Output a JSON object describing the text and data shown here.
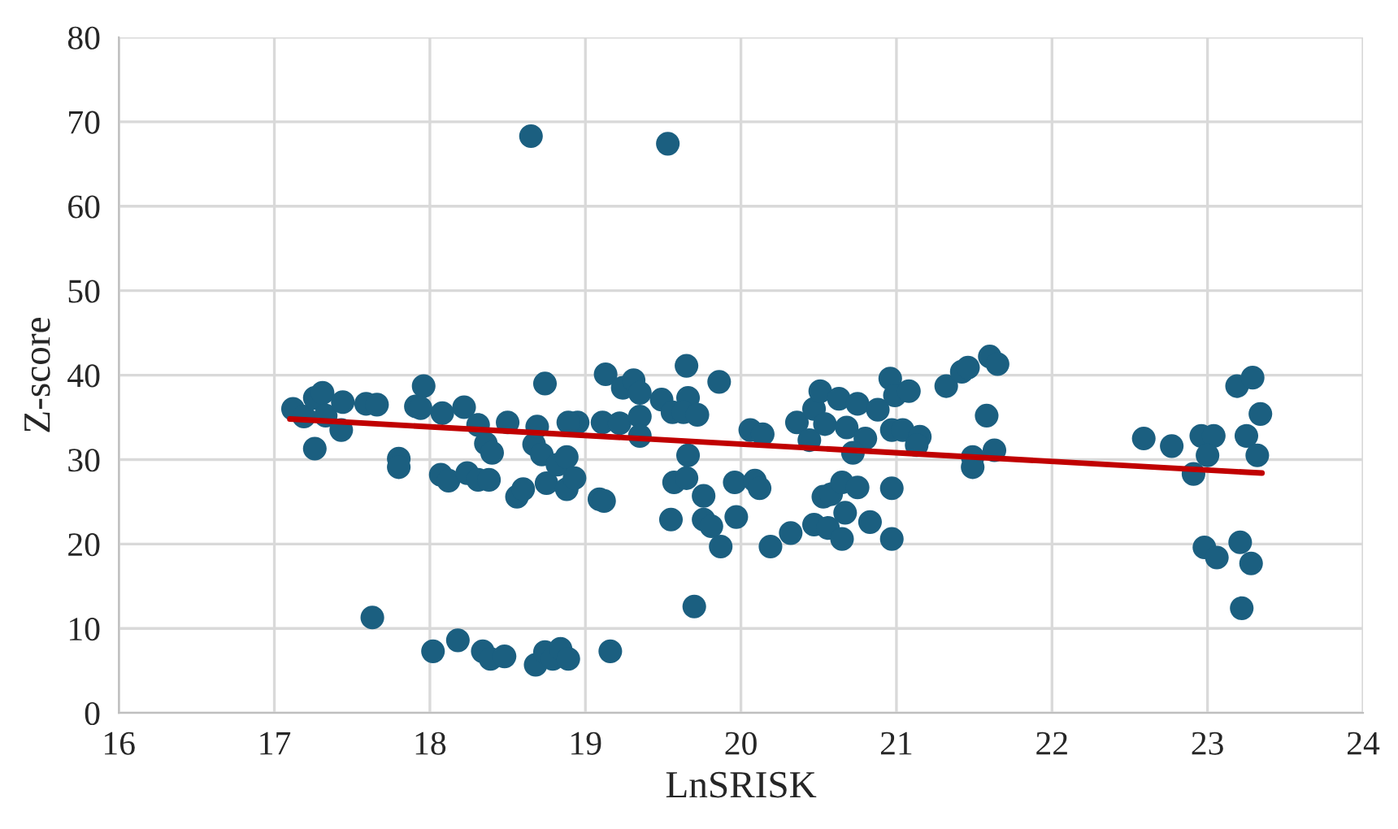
{
  "chart_data": {
    "type": "scatter",
    "xlabel": "LnSRISK",
    "ylabel": "Z-score",
    "xlim": [
      16,
      24
    ],
    "ylim": [
      0,
      80
    ],
    "xticks": [
      16,
      17,
      18,
      19,
      20,
      21,
      22,
      23,
      24
    ],
    "yticks": [
      0,
      10,
      20,
      30,
      40,
      50,
      60,
      70,
      80
    ],
    "grid": true,
    "marker": "circle",
    "series": [
      {
        "color": "#1b5f80",
        "x": [
          17.12,
          17.19,
          17.26,
          17.31,
          17.33,
          17.26,
          17.44,
          17.43,
          17.59,
          17.66,
          17.63,
          17.8,
          17.8,
          17.91,
          17.96,
          17.94,
          18.08,
          18.22,
          18.07,
          18.12,
          18.24,
          18.31,
          18.38,
          18.31,
          18.36,
          18.4,
          18.5,
          18.56,
          18.6,
          18.67,
          18.72,
          18.69,
          18.74,
          18.75,
          18.82,
          18.88,
          18.88,
          18.93,
          18.95,
          18.89,
          19.09,
          19.12,
          19.13,
          19.24,
          19.11,
          19.22,
          18.02,
          18.18,
          18.34,
          18.39,
          18.48,
          18.68,
          18.74,
          18.79,
          18.84,
          18.89,
          19.16,
          18.65,
          19.53,
          19.31,
          19.35,
          19.35,
          19.35,
          19.65,
          19.86,
          19.49,
          19.66,
          19.56,
          19.63,
          19.72,
          19.66,
          19.57,
          19.65,
          19.76,
          19.55,
          19.76,
          19.81,
          19.87,
          19.96,
          19.97,
          19.7,
          20.06,
          20.14,
          20.09,
          20.12,
          20.19,
          20.32,
          20.36,
          20.44,
          20.47,
          20.51,
          20.54,
          20.63,
          20.75,
          20.88,
          20.68,
          20.8,
          20.72,
          20.53,
          20.58,
          20.65,
          20.75,
          20.47,
          20.56,
          20.67,
          20.65,
          20.83,
          20.96,
          20.99,
          21.08,
          20.97,
          21.04,
          21.15,
          21.13,
          20.97,
          20.97,
          21.32,
          21.42,
          21.46,
          21.49,
          21.49,
          21.6,
          21.65,
          21.58,
          21.63,
          22.59,
          22.77,
          22.96,
          23.04,
          23.0,
          22.91,
          23.19,
          23.29,
          23.34,
          23.25,
          23.32,
          22.98,
          23.06,
          23.21,
          23.28,
          23.22
        ],
        "values": [
          36.0,
          35.1,
          37.3,
          37.9,
          35.2,
          31.3,
          36.8,
          33.5,
          36.6,
          36.5,
          11.3,
          30.1,
          29.1,
          36.3,
          38.7,
          36.1,
          35.5,
          36.2,
          28.2,
          27.5,
          28.4,
          27.6,
          27.6,
          34.1,
          31.9,
          30.8,
          34.4,
          25.6,
          26.5,
          31.8,
          30.6,
          33.9,
          39.0,
          27.2,
          29.4,
          30.3,
          26.5,
          27.8,
          34.4,
          34.4,
          25.3,
          25.1,
          40.1,
          38.5,
          34.4,
          34.3,
          7.3,
          8.6,
          7.3,
          6.4,
          6.7,
          5.7,
          7.2,
          6.4,
          7.6,
          6.4,
          7.3,
          68.3,
          67.4,
          39.4,
          37.9,
          35.1,
          32.8,
          41.1,
          39.2,
          37.1,
          37.3,
          35.6,
          35.6,
          35.3,
          30.5,
          27.3,
          27.8,
          25.7,
          22.9,
          22.9,
          22.1,
          19.7,
          27.3,
          23.2,
          12.6,
          33.5,
          33.0,
          27.5,
          26.6,
          19.7,
          21.3,
          34.4,
          32.3,
          36.0,
          38.1,
          34.2,
          37.2,
          36.6,
          35.9,
          33.8,
          32.5,
          30.8,
          25.6,
          25.9,
          27.3,
          26.7,
          22.3,
          21.9,
          23.7,
          20.6,
          22.6,
          39.6,
          37.6,
          38.1,
          33.5,
          33.5,
          32.7,
          31.7,
          26.6,
          20.6,
          38.7,
          40.4,
          40.9,
          30.3,
          29.1,
          42.2,
          41.3,
          35.2,
          31.1,
          32.5,
          31.6,
          32.8,
          32.8,
          30.5,
          28.3,
          38.7,
          39.7,
          35.4,
          32.8,
          30.5,
          19.6,
          18.4,
          20.2,
          17.7,
          12.4
        ]
      },
      {
        "type": "line",
        "color": "#c00000",
        "marker": "none",
        "x": [
          17.1,
          23.35
        ],
        "values": [
          34.8,
          28.4
        ]
      }
    ]
  }
}
